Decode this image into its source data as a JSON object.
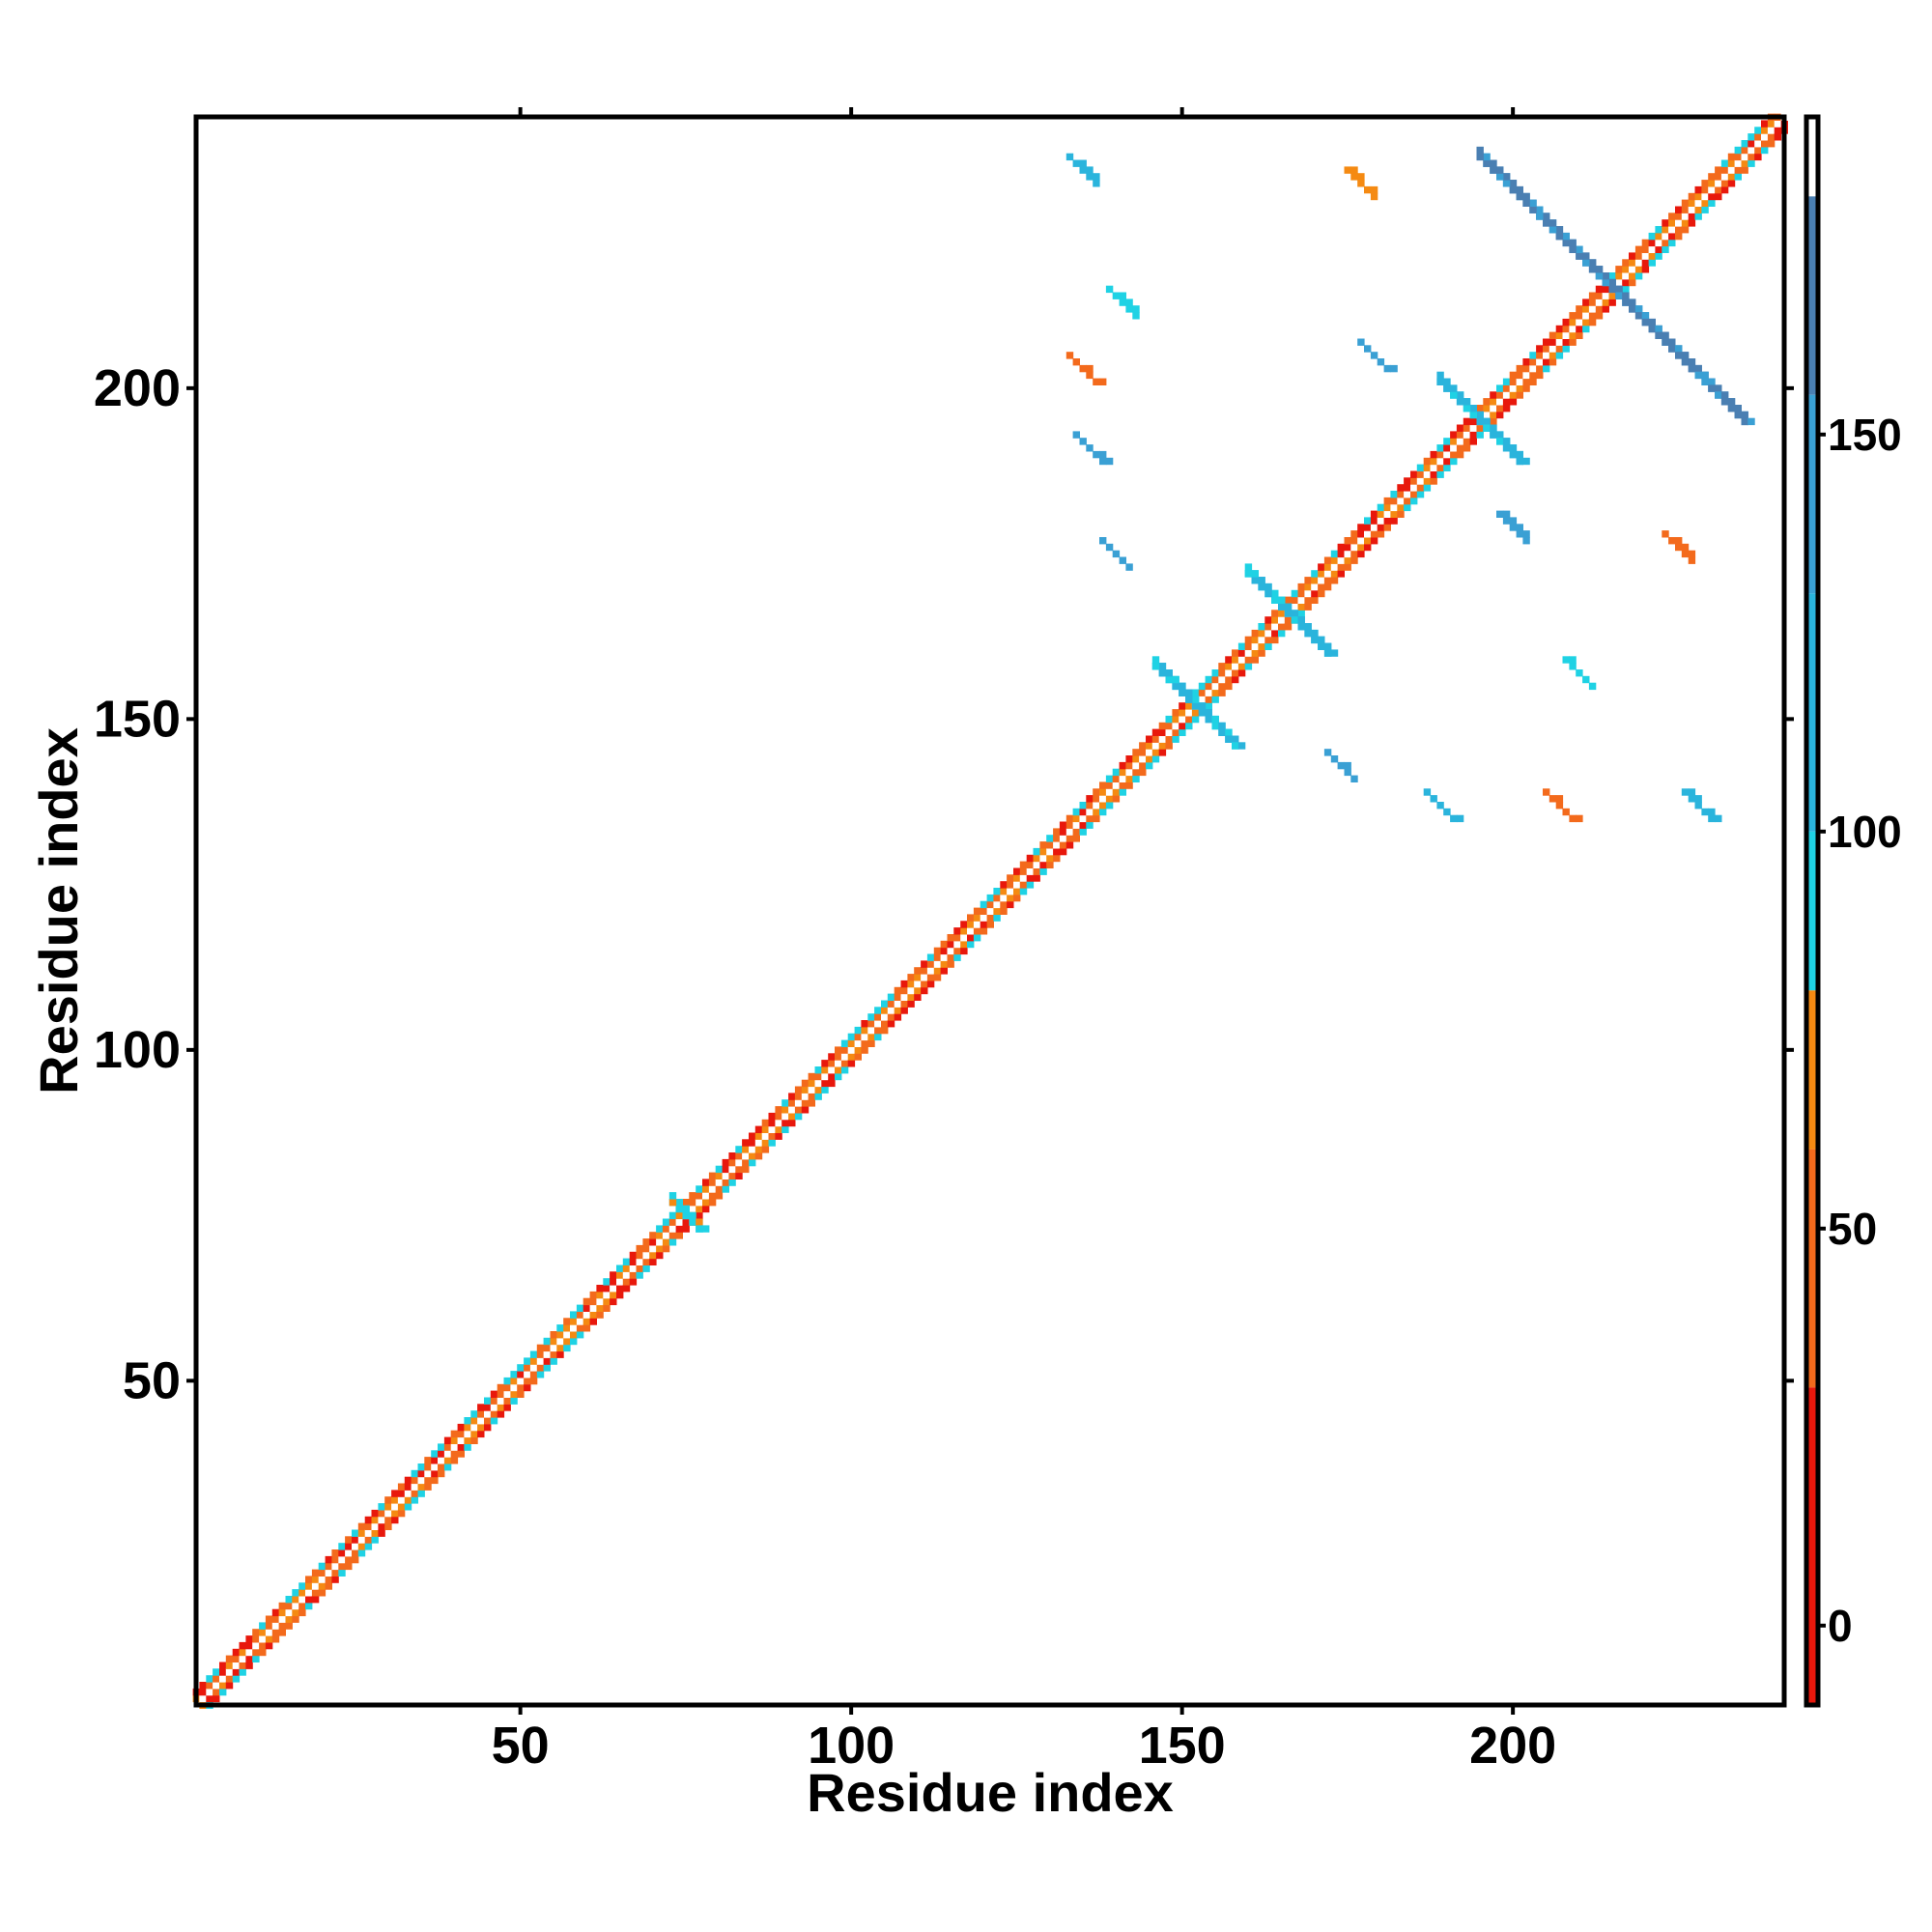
{
  "chart_data": {
    "type": "heatmap",
    "title": "",
    "xlabel": "Residue index",
    "ylabel": "Residue index",
    "xlim": [
      1,
      241
    ],
    "ylim": [
      1,
      241
    ],
    "x_ticks": [
      50,
      100,
      150,
      200
    ],
    "y_ticks": [
      50,
      100,
      150,
      200
    ],
    "colorbar": {
      "range": [
        -10,
        190
      ],
      "ticks": [
        0,
        50,
        100,
        150
      ],
      "bins": [
        {
          "from": -10,
          "to": 30,
          "color": "#e8180c"
        },
        {
          "from": 30,
          "to": 60,
          "color": "#f36a1c"
        },
        {
          "from": 60,
          "to": 80,
          "color": "#f58a12"
        },
        {
          "from": 80,
          "to": 100,
          "color": "#1fd2e4"
        },
        {
          "from": 100,
          "to": 130,
          "color": "#2ab4dc"
        },
        {
          "from": 130,
          "to": 155,
          "color": "#3aa0d4"
        },
        {
          "from": 155,
          "to": 180,
          "color": "#4a7fb2"
        },
        {
          "from": 180,
          "to": 190,
          "color": "#ffffff"
        }
      ]
    },
    "features": {
      "diagonal_band": {
        "from": 1,
        "to": 241,
        "half_width": 2
      },
      "antiparallel_strands": [
        {
          "center": [
            152,
            152
          ],
          "half_length": 6,
          "value": 125
        },
        {
          "center": [
            166,
            166
          ],
          "half_length": 6,
          "value": 110
        },
        {
          "center": [
            195,
            195
          ],
          "half_length": 6,
          "value": 120
        },
        {
          "center": [
            215,
            215
          ],
          "half_length": 20,
          "value": 160
        },
        {
          "center": [
            75,
            75
          ],
          "half_length": 2,
          "value": 95
        }
      ],
      "off_diagonal_blobs": [
        {
          "x": 135,
          "y": 233,
          "value": 110
        },
        {
          "x": 177,
          "y": 231,
          "value": 65
        },
        {
          "x": 141,
          "y": 213,
          "value": 95
        },
        {
          "x": 136,
          "y": 191,
          "value": 130
        },
        {
          "x": 140,
          "y": 175,
          "value": 150
        },
        {
          "x": 174,
          "y": 143,
          "value": 150
        },
        {
          "x": 189,
          "y": 137,
          "value": 100
        },
        {
          "x": 207,
          "y": 137,
          "value": 40
        },
        {
          "x": 228,
          "y": 137,
          "value": 120
        },
        {
          "x": 225,
          "y": 176,
          "value": 55
        },
        {
          "x": 210,
          "y": 157,
          "value": 95
        },
        {
          "x": 200,
          "y": 179,
          "value": 130
        },
        {
          "x": 179,
          "y": 205,
          "value": 140
        },
        {
          "x": 135,
          "y": 203,
          "value": 40
        }
      ]
    }
  }
}
